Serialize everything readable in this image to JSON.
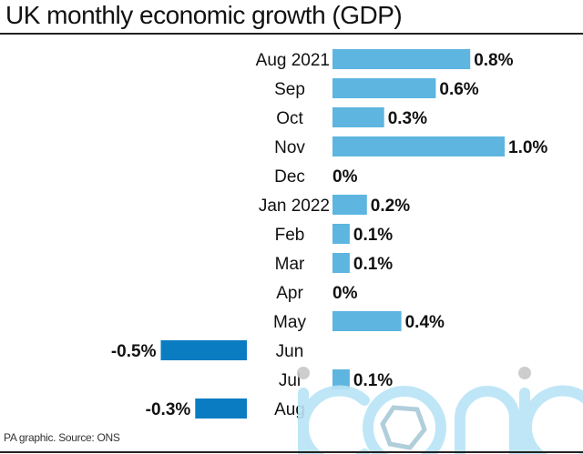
{
  "title": "UK monthly economic growth (GDP)",
  "source": "PA graphic. Source: ONS",
  "watermark": "iconic",
  "colors": {
    "positive": "#5db5e0",
    "negative": "#0a7cc2",
    "watermark": "#b9e4f7"
  },
  "chart_data": {
    "type": "bar",
    "orientation": "horizontal",
    "title": "UK monthly economic growth (GDP)",
    "xlabel": "",
    "ylabel": "",
    "unit": "%",
    "categories": [
      "Aug 2021",
      "Sep",
      "Oct",
      "Nov",
      "Dec",
      "Jan 2022",
      "Feb",
      "Mar",
      "Apr",
      "May",
      "Jun",
      "Jul",
      "Aug"
    ],
    "values": [
      0.8,
      0.6,
      0.3,
      1.0,
      0,
      0.2,
      0.1,
      0.1,
      0,
      0.4,
      -0.5,
      0.1,
      -0.3
    ],
    "labels": [
      "0.8%",
      "0.6%",
      "0.3%",
      "1.0%",
      "0%",
      "0.2%",
      "0.1%",
      "0.1%",
      "0%",
      "0.4%",
      "-0.5%",
      "0.1%",
      "-0.3%"
    ],
    "grid": false,
    "legend": "none"
  }
}
